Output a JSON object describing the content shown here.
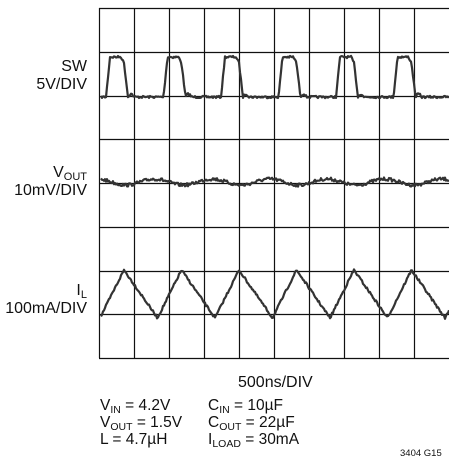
{
  "chart_data": {
    "type": "line",
    "traces": [
      {
        "id": "sw",
        "name": "SW",
        "scale": "5V/DIV"
      },
      {
        "id": "vout",
        "name": "V",
        "name_sub": "OUT",
        "scale": "10mV/DIV"
      },
      {
        "id": "il",
        "name": "I",
        "name_sub": "L",
        "scale": "100mA/DIV"
      }
    ],
    "x_scale": "500ns/DIV",
    "grid": "on",
    "conditions_left": [
      {
        "sym": "V",
        "sub": "IN",
        "value": " = 4.2V"
      },
      {
        "sym": "V",
        "sub": "OUT",
        "value": " = 1.5V"
      },
      {
        "sym": "L",
        "sub": "",
        "value": " = 4.7µH"
      }
    ],
    "conditions_right": [
      {
        "sym": "C",
        "sub": "IN",
        "value": " = 10µF"
      },
      {
        "sym": "C",
        "sub": "OUT",
        "value": " = 22µF"
      },
      {
        "sym": "I",
        "sub": "LOAD",
        "value": " = 30mA"
      }
    ],
    "figure_id": "3404 G15"
  }
}
